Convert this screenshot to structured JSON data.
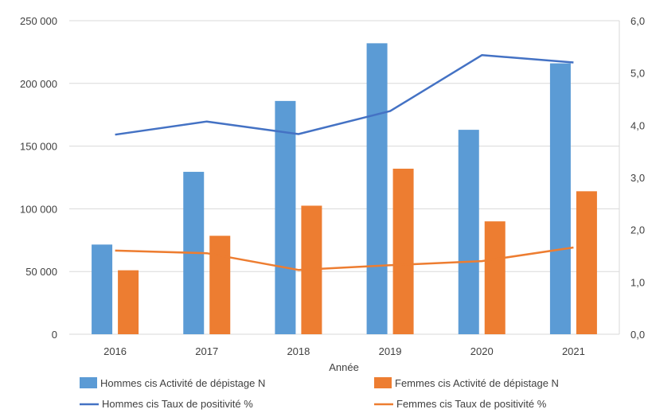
{
  "chart_data": {
    "type": "bar",
    "categories": [
      "2016",
      "2017",
      "2018",
      "2019",
      "2020",
      "2021"
    ],
    "xlabel": "Année",
    "y_left": {
      "ylim": [
        0,
        250000
      ],
      "ticks": [
        "0",
        "50 000",
        "100 000",
        "150 000",
        "200 000",
        "250 000"
      ]
    },
    "y_right": {
      "ylim": [
        0,
        6.0
      ],
      "ticks": [
        "0,0",
        "1,0",
        "2,0",
        "3,0",
        "4,0",
        "5,0",
        "6,0"
      ]
    },
    "series": [
      {
        "name": "Hommes cis Activité de dépistage  N",
        "type": "bar",
        "axis": "left",
        "color": "#5B9BD5",
        "values": [
          71500,
          129500,
          186000,
          232000,
          163000,
          216000
        ]
      },
      {
        "name": "Femmes cis Activité de dépistage  N",
        "type": "bar",
        "axis": "left",
        "color": "#ED7D31",
        "values": [
          51000,
          78500,
          102500,
          132000,
          90000,
          114000
        ]
      },
      {
        "name": "Hommes cis Taux de positivité %",
        "type": "line",
        "axis": "right",
        "color": "#4472C4",
        "values": [
          3.82,
          4.07,
          3.83,
          4.27,
          5.34,
          5.2
        ]
      },
      {
        "name": "Femmes cis Taux de positivité %",
        "type": "line",
        "axis": "right",
        "color": "#ED7D31",
        "values": [
          1.6,
          1.55,
          1.23,
          1.32,
          1.4,
          1.66
        ]
      }
    ],
    "grid": true,
    "legend": "bottom"
  }
}
